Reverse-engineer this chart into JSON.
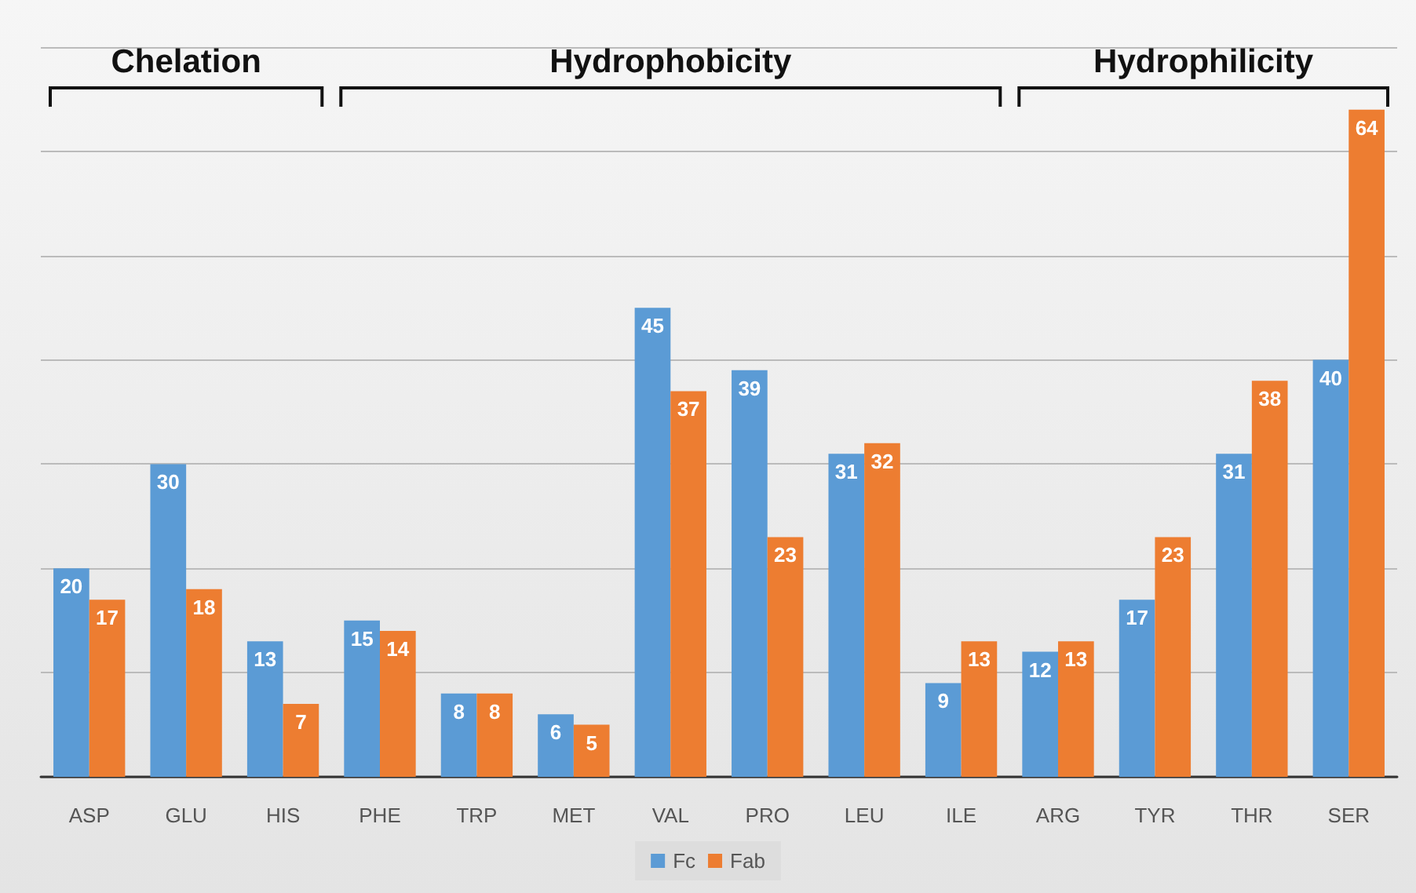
{
  "chart_data": {
    "type": "bar",
    "categories": [
      "ASP",
      "GLU",
      "HIS",
      "PHE",
      "TRP",
      "MET",
      "VAL",
      "PRO",
      "LEU",
      "ILE",
      "ARG",
      "TYR",
      "THR",
      "SER"
    ],
    "series": [
      {
        "name": "Fc",
        "color": "#5b9bd5",
        "values": [
          20,
          30,
          13,
          15,
          8,
          6,
          45,
          39,
          31,
          9,
          12,
          17,
          31,
          40
        ]
      },
      {
        "name": "Fab",
        "color": "#ed7d31",
        "values": [
          17,
          18,
          7,
          14,
          8,
          5,
          37,
          23,
          32,
          13,
          13,
          23,
          38,
          64
        ]
      }
    ],
    "ylim": [
      0,
      70
    ],
    "yticks": [
      {
        "value": 0,
        "label": null
      },
      {
        "value": 10,
        "label": null
      },
      {
        "value": 20,
        "label": null
      },
      {
        "value": 30,
        "label": null
      },
      {
        "value": 40,
        "label": null
      },
      {
        "value": 50,
        "label": null
      },
      {
        "value": 60,
        "label": null
      },
      {
        "value": 70,
        "label": null
      }
    ],
    "grid": "y",
    "legend": "bottom",
    "data_labels": true,
    "tick_labels": "x",
    "annotations": [
      "Chelation",
      "Hydrophobicity",
      "Hydrophilicity"
    ]
  }
}
